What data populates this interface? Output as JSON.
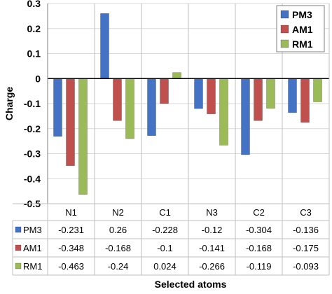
{
  "chart_data": {
    "type": "bar",
    "categories": [
      "N1",
      "N2",
      "C1",
      "N3",
      "C2",
      "C3"
    ],
    "series": [
      {
        "name": "PM3",
        "color": "#4472C4",
        "values": [
          -0.231,
          0.26,
          -0.228,
          -0.12,
          -0.304,
          -0.136
        ]
      },
      {
        "name": "AM1",
        "color": "#C0504D",
        "values": [
          -0.348,
          -0.168,
          -0.1,
          -0.141,
          -0.168,
          -0.175
        ]
      },
      {
        "name": "RM1",
        "color": "#9BBB59",
        "values": [
          -0.463,
          -0.24,
          0.024,
          -0.266,
          -0.119,
          -0.093
        ]
      }
    ],
    "table_values": [
      [
        "-0.231",
        "0.26",
        "-0.228",
        "-0.12",
        "-0.304",
        "-0.136"
      ],
      [
        "-0.348",
        "-0.168",
        "-0.1",
        "-0.141",
        "-0.168",
        "-0.175"
      ],
      [
        "-0.463",
        "-0.24",
        "0.024",
        "-0.266",
        "-0.119",
        "-0.093"
      ]
    ],
    "ylim": [
      -0.5,
      0.3
    ],
    "yticks": [
      "0.3",
      "0.2",
      "0.1",
      "0",
      "-0.1",
      "-0.2",
      "-0.3",
      "-0.4",
      "-0.5"
    ],
    "ylabel": "Charge",
    "xlabel": "Selected atoms",
    "grid": true,
    "legend_position": "top-right"
  }
}
